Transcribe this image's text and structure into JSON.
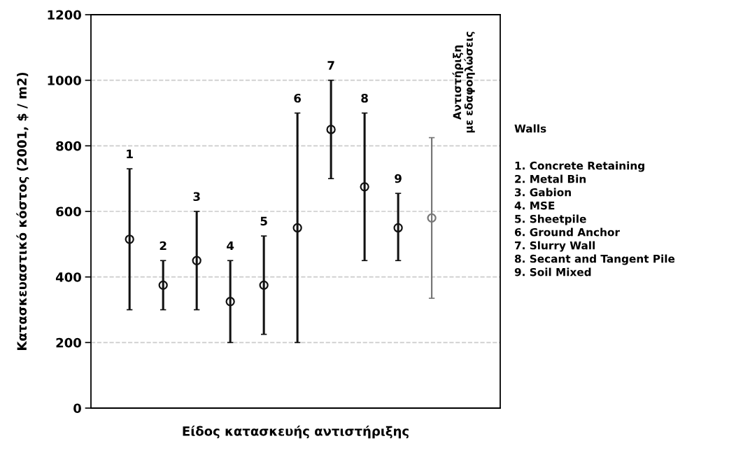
{
  "chart_data": {
    "type": "scatter",
    "xlabel": "Είδος κατασκευής αντιστήριξης",
    "ylabel": "Κατασκευαστικό κόστος (2001, $ / m2)",
    "categories": [
      "1",
      "2",
      "3",
      "4",
      "5",
      "6",
      "7",
      "8",
      "9",
      null
    ],
    "series": [
      {
        "color": "#111111",
        "colors": [
          "#111111",
          "#111111",
          "#111111",
          "#111111",
          "#111111",
          "#111111",
          "#111111",
          "#111111",
          "#111111",
          "#777777"
        ],
        "values": [
          515,
          375,
          450,
          325,
          375,
          550,
          850,
          675,
          550,
          580
        ],
        "errors": [
          [
            300,
            730
          ],
          [
            300,
            450
          ],
          [
            300,
            600
          ],
          [
            200,
            450
          ],
          [
            225,
            525
          ],
          [
            200,
            900
          ],
          [
            700,
            1000
          ],
          [
            450,
            900
          ],
          [
            450,
            655
          ],
          [
            335,
            825
          ]
        ]
      }
    ],
    "ylim": [
      0,
      1200
    ],
    "yticks": [
      0,
      200,
      400,
      600,
      800,
      1000,
      1200
    ],
    "grid": "y",
    "marker": "circle",
    "tick_labels": "y",
    "annotations": [
      "Αντιστήριξη\nμε εδαφοηλώσεις",
      "Walls",
      "1. Concrete Retaining",
      "2. Metal Bin",
      "3. Gabion",
      "4. MSE",
      "5. Sheetpile",
      "6. Ground Anchor",
      "7. Slurry Wall",
      "8. Secant and Tangent Pile",
      "9. Soil Mixed"
    ]
  }
}
